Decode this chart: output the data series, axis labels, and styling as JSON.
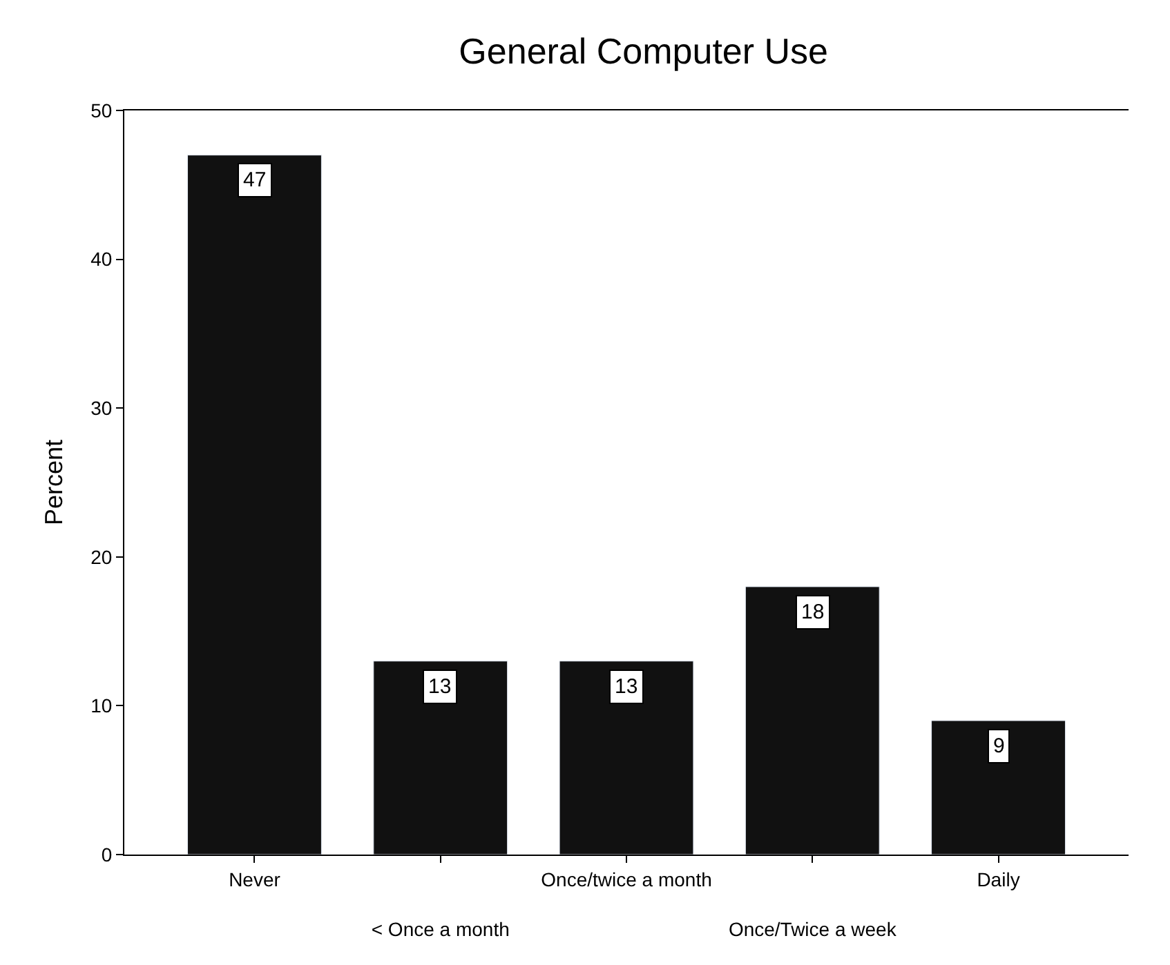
{
  "chart_data": {
    "type": "bar",
    "title": "General Computer Use",
    "ylabel": "Percent",
    "categories": [
      "Never",
      "< Once a month",
      "Once/twice a month",
      "Once/Twice a week",
      "Daily"
    ],
    "values": [
      47,
      13,
      13,
      18,
      9
    ],
    "color": "#111111",
    "ylim": [
      0,
      50
    ],
    "yticks": [
      0,
      10,
      20,
      30,
      40,
      50
    ],
    "data_labels": true
  }
}
